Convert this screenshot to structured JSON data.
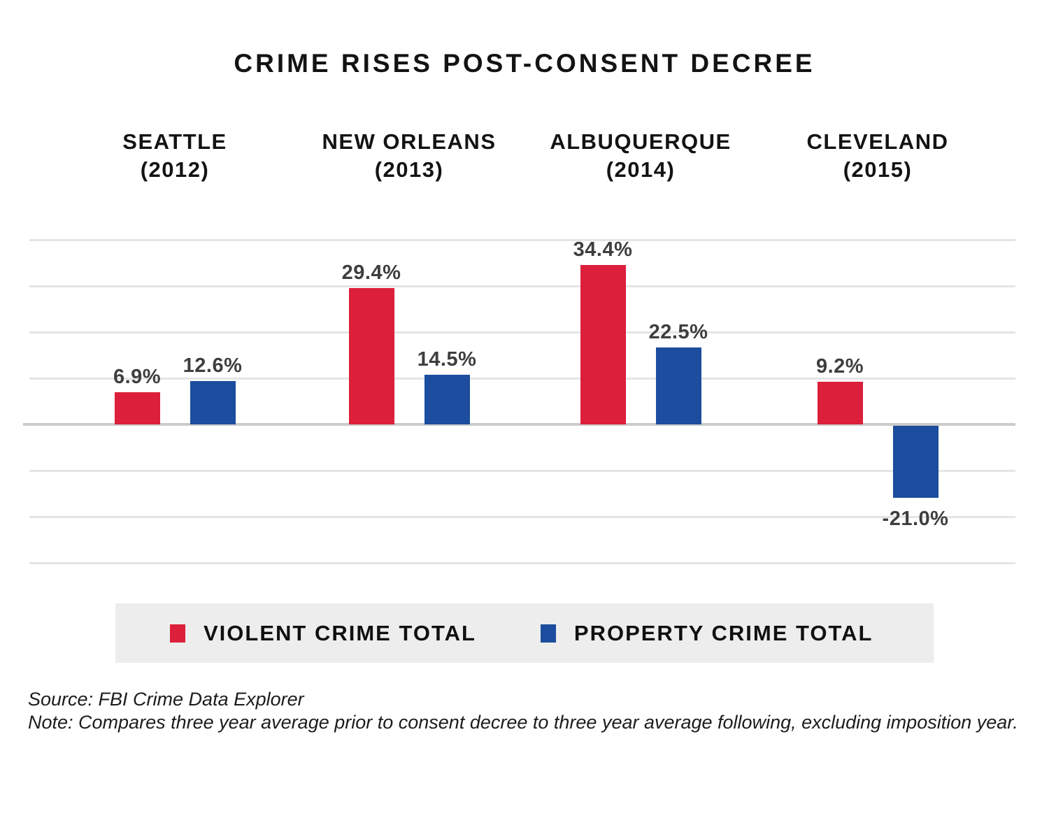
{
  "chart_data": {
    "type": "bar",
    "title": "CRIME RISES POST-CONSENT DECREE",
    "categories": [
      "SEATTLE",
      "NEW ORLEANS",
      "ALBUQUERQUE",
      "CLEVELAND"
    ],
    "category_years": [
      "(2012)",
      "(2013)",
      "(2014)",
      "(2015)"
    ],
    "series": [
      {
        "name": "VIOLENT CRIME TOTAL",
        "color": "#DC1F3B",
        "values": [
          6.9,
          29.4,
          34.4,
          9.2
        ],
        "data_labels": [
          "6.9%",
          "29.4%",
          "34.4%",
          "9.2%"
        ]
      },
      {
        "name": "PROPERTY CRIME TOTAL",
        "color": "#1C4D9E",
        "values": [
          12.6,
          14.5,
          22.5,
          -21.0
        ],
        "data_labels": [
          "12.6%",
          "14.5%",
          "22.5%",
          "-21.0%"
        ]
      }
    ],
    "xlabel": "",
    "ylabel": "",
    "ylim": [
      -30,
      40
    ],
    "grid": true,
    "gridline_interval": 10,
    "y_tick_labels_shown": false,
    "legend_position": "bottom"
  },
  "footer": {
    "source": "Source: FBI Crime Data Explorer",
    "note": "Note: Compares three year average prior to consent decree to three year average following, excluding imposition year."
  },
  "colors": {
    "background": "#FFFFFF",
    "violent": "#DC1F3B",
    "property": "#1C4D9E",
    "value_label": "#3E3E3E",
    "gridline": "#E5E5E5",
    "zero_line": "#CBCBCB",
    "legend_background": "#EDEDEE",
    "text": "#141414"
  }
}
